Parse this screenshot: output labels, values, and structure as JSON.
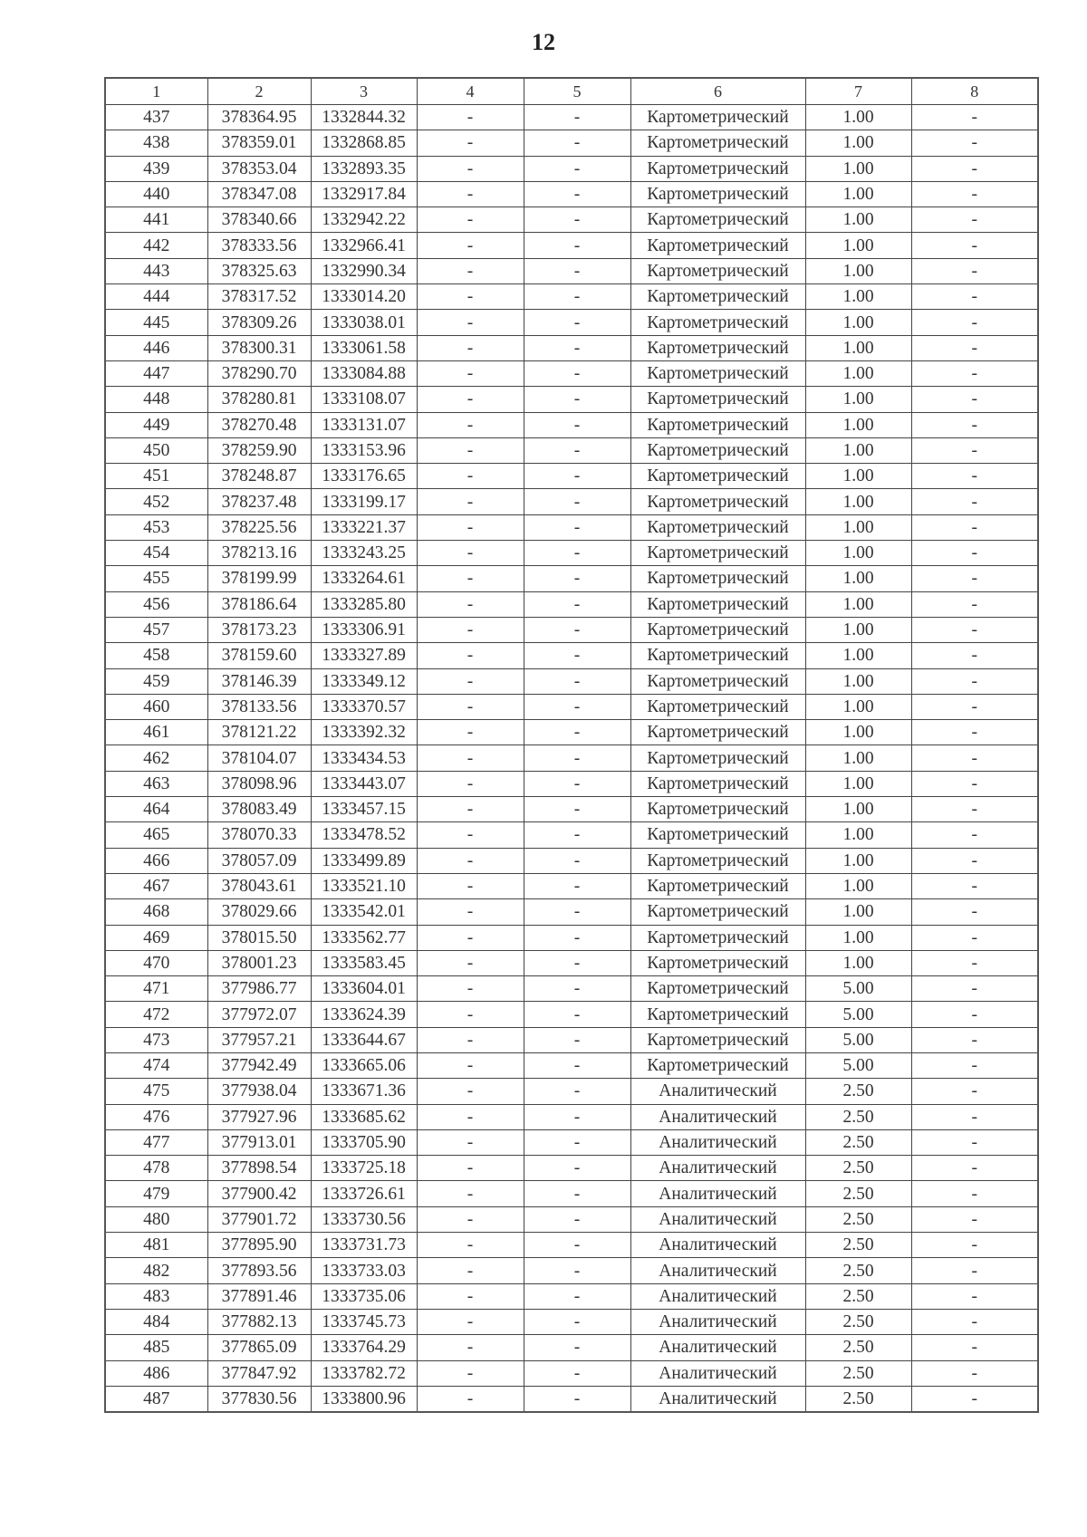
{
  "page_number": "12",
  "headers": [
    "1",
    "2",
    "3",
    "4",
    "5",
    "6",
    "7",
    "8"
  ],
  "rows": [
    [
      "437",
      "378364.95",
      "1332844.32",
      "-",
      "-",
      "Картометрический",
      "1.00",
      "-"
    ],
    [
      "438",
      "378359.01",
      "1332868.85",
      "-",
      "-",
      "Картометрический",
      "1.00",
      "-"
    ],
    [
      "439",
      "378353.04",
      "1332893.35",
      "-",
      "-",
      "Картометрический",
      "1.00",
      "-"
    ],
    [
      "440",
      "378347.08",
      "1332917.84",
      "-",
      "-",
      "Картометрический",
      "1.00",
      "-"
    ],
    [
      "441",
      "378340.66",
      "1332942.22",
      "-",
      "-",
      "Картометрический",
      "1.00",
      "-"
    ],
    [
      "442",
      "378333.56",
      "1332966.41",
      "-",
      "-",
      "Картометрический",
      "1.00",
      "-"
    ],
    [
      "443",
      "378325.63",
      "1332990.34",
      "-",
      "-",
      "Картометрический",
      "1.00",
      "-"
    ],
    [
      "444",
      "378317.52",
      "1333014.20",
      "-",
      "-",
      "Картометрический",
      "1.00",
      "-"
    ],
    [
      "445",
      "378309.26",
      "1333038.01",
      "-",
      "-",
      "Картометрический",
      "1.00",
      "-"
    ],
    [
      "446",
      "378300.31",
      "1333061.58",
      "-",
      "-",
      "Картометрический",
      "1.00",
      "-"
    ],
    [
      "447",
      "378290.70",
      "1333084.88",
      "-",
      "-",
      "Картометрический",
      "1.00",
      "-"
    ],
    [
      "448",
      "378280.81",
      "1333108.07",
      "-",
      "-",
      "Картометрический",
      "1.00",
      "-"
    ],
    [
      "449",
      "378270.48",
      "1333131.07",
      "-",
      "-",
      "Картометрический",
      "1.00",
      "-"
    ],
    [
      "450",
      "378259.90",
      "1333153.96",
      "-",
      "-",
      "Картометрический",
      "1.00",
      "-"
    ],
    [
      "451",
      "378248.87",
      "1333176.65",
      "-",
      "-",
      "Картометрический",
      "1.00",
      "-"
    ],
    [
      "452",
      "378237.48",
      "1333199.17",
      "-",
      "-",
      "Картометрический",
      "1.00",
      "-"
    ],
    [
      "453",
      "378225.56",
      "1333221.37",
      "-",
      "-",
      "Картометрический",
      "1.00",
      "-"
    ],
    [
      "454",
      "378213.16",
      "1333243.25",
      "-",
      "-",
      "Картометрический",
      "1.00",
      "-"
    ],
    [
      "455",
      "378199.99",
      "1333264.61",
      "-",
      "-",
      "Картометрический",
      "1.00",
      "-"
    ],
    [
      "456",
      "378186.64",
      "1333285.80",
      "-",
      "-",
      "Картометрический",
      "1.00",
      "-"
    ],
    [
      "457",
      "378173.23",
      "1333306.91",
      "-",
      "-",
      "Картометрический",
      "1.00",
      "-"
    ],
    [
      "458",
      "378159.60",
      "1333327.89",
      "-",
      "-",
      "Картометрический",
      "1.00",
      "-"
    ],
    [
      "459",
      "378146.39",
      "1333349.12",
      "-",
      "-",
      "Картометрический",
      "1.00",
      "-"
    ],
    [
      "460",
      "378133.56",
      "1333370.57",
      "-",
      "-",
      "Картометрический",
      "1.00",
      "-"
    ],
    [
      "461",
      "378121.22",
      "1333392.32",
      "-",
      "-",
      "Картометрический",
      "1.00",
      "-"
    ],
    [
      "462",
      "378104.07",
      "1333434.53",
      "-",
      "-",
      "Картометрический",
      "1.00",
      "-"
    ],
    [
      "463",
      "378098.96",
      "1333443.07",
      "-",
      "-",
      "Картометрический",
      "1.00",
      "-"
    ],
    [
      "464",
      "378083.49",
      "1333457.15",
      "-",
      "-",
      "Картометрический",
      "1.00",
      "-"
    ],
    [
      "465",
      "378070.33",
      "1333478.52",
      "-",
      "-",
      "Картометрический",
      "1.00",
      "-"
    ],
    [
      "466",
      "378057.09",
      "1333499.89",
      "-",
      "-",
      "Картометрический",
      "1.00",
      "-"
    ],
    [
      "467",
      "378043.61",
      "1333521.10",
      "-",
      "-",
      "Картометрический",
      "1.00",
      "-"
    ],
    [
      "468",
      "378029.66",
      "1333542.01",
      "-",
      "-",
      "Картометрический",
      "1.00",
      "-"
    ],
    [
      "469",
      "378015.50",
      "1333562.77",
      "-",
      "-",
      "Картометрический",
      "1.00",
      "-"
    ],
    [
      "470",
      "378001.23",
      "1333583.45",
      "-",
      "-",
      "Картометрический",
      "1.00",
      "-"
    ],
    [
      "471",
      "377986.77",
      "1333604.01",
      "-",
      "-",
      "Картометрический",
      "5.00",
      "-"
    ],
    [
      "472",
      "377972.07",
      "1333624.39",
      "-",
      "-",
      "Картометрический",
      "5.00",
      "-"
    ],
    [
      "473",
      "377957.21",
      "1333644.67",
      "-",
      "-",
      "Картометрический",
      "5.00",
      "-"
    ],
    [
      "474",
      "377942.49",
      "1333665.06",
      "-",
      "-",
      "Картометрический",
      "5.00",
      "-"
    ],
    [
      "475",
      "377938.04",
      "1333671.36",
      "-",
      "-",
      "Аналитический",
      "2.50",
      "-"
    ],
    [
      "476",
      "377927.96",
      "1333685.62",
      "-",
      "-",
      "Аналитический",
      "2.50",
      "-"
    ],
    [
      "477",
      "377913.01",
      "1333705.90",
      "-",
      "-",
      "Аналитический",
      "2.50",
      "-"
    ],
    [
      "478",
      "377898.54",
      "1333725.18",
      "-",
      "-",
      "Аналитический",
      "2.50",
      "-"
    ],
    [
      "479",
      "377900.42",
      "1333726.61",
      "-",
      "-",
      "Аналитический",
      "2.50",
      "-"
    ],
    [
      "480",
      "377901.72",
      "1333730.56",
      "-",
      "-",
      "Аналитический",
      "2.50",
      "-"
    ],
    [
      "481",
      "377895.90",
      "1333731.73",
      "-",
      "-",
      "Аналитический",
      "2.50",
      "-"
    ],
    [
      "482",
      "377893.56",
      "1333733.03",
      "-",
      "-",
      "Аналитический",
      "2.50",
      "-"
    ],
    [
      "483",
      "377891.46",
      "1333735.06",
      "-",
      "-",
      "Аналитический",
      "2.50",
      "-"
    ],
    [
      "484",
      "377882.13",
      "1333745.73",
      "-",
      "-",
      "Аналитический",
      "2.50",
      "-"
    ],
    [
      "485",
      "377865.09",
      "1333764.29",
      "-",
      "-",
      "Аналитический",
      "2.50",
      "-"
    ],
    [
      "486",
      "377847.92",
      "1333782.72",
      "-",
      "-",
      "Аналитический",
      "2.50",
      "-"
    ],
    [
      "487",
      "377830.56",
      "1333800.96",
      "-",
      "-",
      "Аналитический",
      "2.50",
      "-"
    ]
  ]
}
